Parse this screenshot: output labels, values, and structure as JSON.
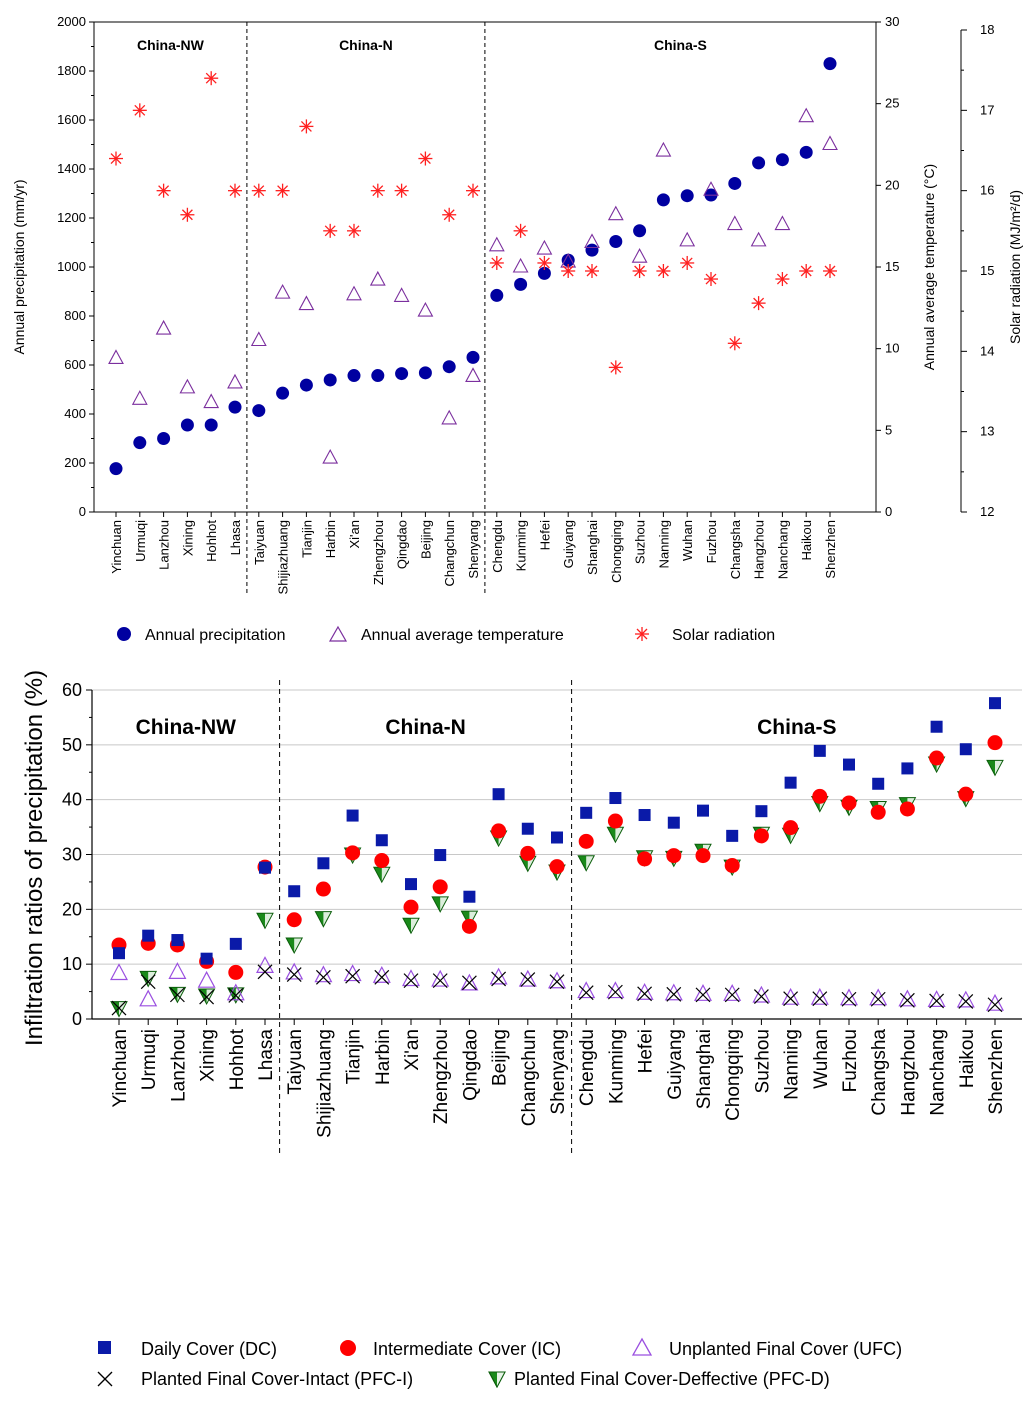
{
  "colors": {
    "precip": "#0000a0",
    "temp": "#7b2f9e",
    "solar": "#ff2020",
    "dc": "#0a1aa8",
    "ic": "#ff0000",
    "ufc": "#9a4fe0",
    "pfci": "#000000",
    "pfcd_fill": "#1a8a1a",
    "pfcd_stroke": "#0b5e0b",
    "grid": "#c8c8c8"
  },
  "chart_data": [
    {
      "type": "scatter",
      "title": "",
      "regions": [
        "China-NW",
        "China-N",
        "China-S"
      ],
      "categories": [
        "Yinchuan",
        "Urmuqi",
        "Lanzhou",
        "Xining",
        "Hohhot",
        "Lhasa",
        "Taiyuan",
        "Shijiazhuang",
        "Tianjin",
        "Harbin",
        "Xi'an",
        "Zhengzhou",
        "Qingdao",
        "Beijing",
        "Changchun",
        "Shenyang",
        "Chengdu",
        "Kunming",
        "Hefei",
        "Guiyang",
        "Shanghai",
        "Chongqing",
        "Suzhou",
        "Nanning",
        "Wuhan",
        "Fuzhou",
        "Changsha",
        "Hangzhou",
        "Nanchang",
        "Haikou",
        "Shenzhen"
      ],
      "ylabel": "Annual precipitation (mm/yr)",
      "ylim": [
        0,
        2000
      ],
      "yticks": [
        "0",
        "200",
        "400",
        "600",
        "800",
        "1000",
        "1200",
        "1400",
        "1600",
        "1800",
        "2000"
      ],
      "y2label": "Annual average temperature (°C)",
      "y2lim": [
        0,
        30
      ],
      "y2ticks": [
        "0",
        "5",
        "10",
        "15",
        "20",
        "25",
        "30"
      ],
      "y3label": "Solar radiation (MJ/m²/d)",
      "y3lim": [
        12,
        18
      ],
      "y3ticks": [
        "12",
        "13",
        "14",
        "15",
        "16",
        "17",
        "18"
      ],
      "series": [
        {
          "name": "Annual precipitation",
          "axis": "left",
          "marker": "circle",
          "values": [
            177,
            283,
            300,
            355,
            355,
            428,
            414,
            485,
            518,
            539,
            557,
            557,
            565,
            568,
            593,
            631,
            884,
            929,
            974,
            1028,
            1069,
            1104,
            1148,
            1274,
            1291,
            1294,
            1341,
            1425,
            1438,
            1468,
            1830
          ]
        },
        {
          "name": "Annual average temperature",
          "axis": "temp",
          "marker": "triangle",
          "values": [
            9.4,
            6.9,
            11.2,
            7.6,
            6.7,
            7.9,
            10.5,
            13.4,
            12.7,
            3.3,
            13.3,
            14.2,
            13.2,
            12.3,
            5.7,
            8.3,
            16.3,
            15.0,
            16.1,
            15.3,
            16.5,
            18.2,
            15.6,
            22.1,
            16.6,
            19.7,
            17.6,
            16.6,
            17.6,
            24.2,
            22.5
          ]
        },
        {
          "name": "Solar radiation",
          "axis": "solar",
          "marker": "asterisk",
          "values": [
            16.4,
            17.0,
            16.0,
            15.7,
            17.4,
            16.0,
            16.0,
            16.0,
            16.8,
            15.5,
            15.5,
            16.0,
            16.0,
            16.4,
            15.7,
            16.0,
            15.1,
            15.5,
            15.1,
            15.0,
            15.0,
            13.8,
            15.0,
            15.0,
            15.1,
            14.9,
            14.1,
            14.6,
            14.9,
            15.0,
            15.0
          ]
        }
      ]
    },
    {
      "type": "scatter",
      "title": "",
      "regions": [
        "China-NW",
        "China-N",
        "China-S"
      ],
      "categories": [
        "Yinchuan",
        "Urmuqi",
        "Lanzhou",
        "Xining",
        "Hohhot",
        "Lhasa",
        "Taiyuan",
        "Shijiazhuang",
        "Tianjin",
        "Harbin",
        "Xi'an",
        "Zhengzhou",
        "Qingdao",
        "Beijing",
        "Changchun",
        "Shenyang",
        "Chengdu",
        "Kunming",
        "Hefei",
        "Guiyang",
        "Shanghai",
        "Chongqing",
        "Suzhou",
        "Nanning",
        "Wuhan",
        "Fuzhou",
        "Changsha",
        "Hangzhou",
        "Nanchang",
        "Haikou",
        "Shenzhen"
      ],
      "ylabel": "Infiltration ratios of precipitation (%)",
      "ylim": [
        0,
        60
      ],
      "yticks": [
        "0",
        "10",
        "20",
        "30",
        "40",
        "50",
        "60"
      ],
      "grid": true,
      "series": [
        {
          "name": "Daily Cover (DC)",
          "marker": "square",
          "values": [
            12.0,
            15.2,
            14.4,
            11.0,
            13.7,
            27.6,
            23.3,
            28.4,
            37.1,
            32.6,
            24.6,
            29.9,
            22.3,
            41.0,
            34.7,
            33.1,
            37.6,
            40.3,
            37.2,
            35.8,
            38.0,
            33.4,
            37.9,
            43.1,
            48.9,
            46.4,
            42.9,
            45.7,
            53.3,
            49.2,
            57.6
          ]
        },
        {
          "name": "Intermediate Cover (IC)",
          "marker": "circle",
          "values": [
            13.5,
            13.8,
            13.5,
            10.5,
            8.5,
            27.7,
            18.1,
            23.7,
            30.3,
            28.9,
            20.4,
            24.1,
            16.9,
            34.3,
            30.2,
            27.8,
            32.4,
            36.1,
            29.2,
            29.8,
            29.8,
            28.0,
            33.4,
            34.9,
            40.6,
            39.4,
            37.7,
            38.3,
            47.6,
            41.0,
            50.4
          ]
        },
        {
          "name": "Unplanted Final Cover (UFC)",
          "marker": "triangle",
          "values": [
            8.3,
            3.5,
            8.5,
            6.9,
            4.6,
            9.6,
            8.4,
            7.9,
            8.1,
            7.8,
            7.2,
            7.1,
            6.4,
            7.5,
            7.1,
            6.8,
            5.0,
            5.0,
            4.7,
            4.6,
            4.5,
            4.5,
            4.2,
            3.8,
            3.8,
            3.7,
            3.7,
            3.5,
            3.4,
            3.3,
            2.7
          ]
        },
        {
          "name": "Planted Final Cover-Intact (PFC-I)",
          "marker": "x",
          "values": [
            2.0,
            6.8,
            4.4,
            4.0,
            4.3,
            8.6,
            8.1,
            7.6,
            7.8,
            7.6,
            7.0,
            7.0,
            6.6,
            7.3,
            7.2,
            6.8,
            4.8,
            4.9,
            4.6,
            4.5,
            4.4,
            4.4,
            4.1,
            3.7,
            3.7,
            3.6,
            3.6,
            3.4,
            3.3,
            3.2,
            2.6
          ]
        },
        {
          "name": "Planted Final Cover-Deffective (PFC-D)",
          "marker": "triangle-down",
          "values": [
            1.9,
            7.4,
            4.5,
            4.2,
            4.4,
            18.0,
            13.5,
            18.3,
            29.9,
            26.4,
            17.1,
            21.0,
            18.4,
            33.0,
            28.4,
            26.8,
            28.5,
            33.7,
            29.4,
            29.3,
            30.6,
            27.7,
            33.7,
            33.5,
            39.3,
            38.6,
            38.4,
            39.1,
            46.5,
            40.2,
            45.9
          ]
        }
      ]
    }
  ]
}
